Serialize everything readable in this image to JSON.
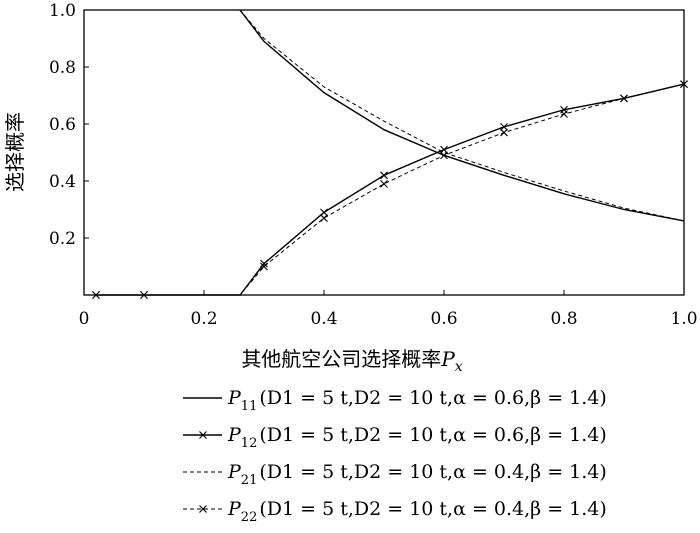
{
  "chart_data": {
    "type": "line",
    "ylabel": "选择概率",
    "xlabel_text": "其他航空公司选择概率",
    "xlabel_var": "P",
    "xlabel_sub": "x",
    "xlim": [
      0,
      1
    ],
    "ylim": [
      0,
      1
    ],
    "x_ticks": [
      "0",
      "0.2",
      "0.4",
      "0.6",
      "0.8",
      "1.0"
    ],
    "y_ticks": [
      "0.2",
      "0.4",
      "0.6",
      "0.8",
      "1.0"
    ],
    "grid": false,
    "legend_position": "below",
    "series": [
      {
        "sub": "11",
        "params": "(D1 = 5 t,D2 = 10 t,α = 0.6,β = 1.4)",
        "style": "solid",
        "marker": "none",
        "x": [
          0.26,
          0.3,
          0.4,
          0.5,
          0.6,
          0.7,
          0.8,
          0.9,
          1.0
        ],
        "y": [
          1.0,
          0.89,
          0.71,
          0.58,
          0.49,
          0.42,
          0.355,
          0.3,
          0.26
        ]
      },
      {
        "sub": "12",
        "params": "(D1 = 5 t,D2 = 10 t,α = 0.6,β = 1.4)",
        "style": "solid",
        "marker": "x",
        "x": [
          0.02,
          0.1,
          0.26,
          0.3,
          0.4,
          0.5,
          0.6,
          0.7,
          0.8,
          0.9,
          1.0
        ],
        "y": [
          0.0,
          0.0,
          0.0,
          0.11,
          0.29,
          0.42,
          0.51,
          0.59,
          0.65,
          0.69,
          0.74
        ],
        "markers_x": [
          0.02,
          0.1,
          0.3,
          0.4,
          0.5,
          0.6,
          0.7,
          0.8,
          0.9,
          1.0
        ]
      },
      {
        "sub": "21",
        "params": "(D1 = 5 t,D2 = 10 t,α = 0.4,β = 1.4)",
        "style": "dashed",
        "marker": "none",
        "x": [
          0.26,
          0.3,
          0.4,
          0.5,
          0.6,
          0.7,
          0.8,
          0.9,
          1.0
        ],
        "y": [
          1.0,
          0.9,
          0.73,
          0.61,
          0.5,
          0.43,
          0.365,
          0.305,
          0.26
        ]
      },
      {
        "sub": "22",
        "params": "(D1 = 5 t,D2 = 10 t,α = 0.4,β = 1.4)",
        "style": "dashed",
        "marker": "x",
        "x": [
          0.02,
          0.1,
          0.26,
          0.3,
          0.4,
          0.5,
          0.6,
          0.7,
          0.8,
          0.9,
          1.0
        ],
        "y": [
          0.0,
          0.0,
          0.0,
          0.1,
          0.27,
          0.39,
          0.49,
          0.57,
          0.635,
          0.69,
          0.74
        ],
        "markers_x": [
          0.02,
          0.1,
          0.3,
          0.4,
          0.5,
          0.6,
          0.7,
          0.8,
          0.9,
          1.0
        ]
      }
    ]
  }
}
